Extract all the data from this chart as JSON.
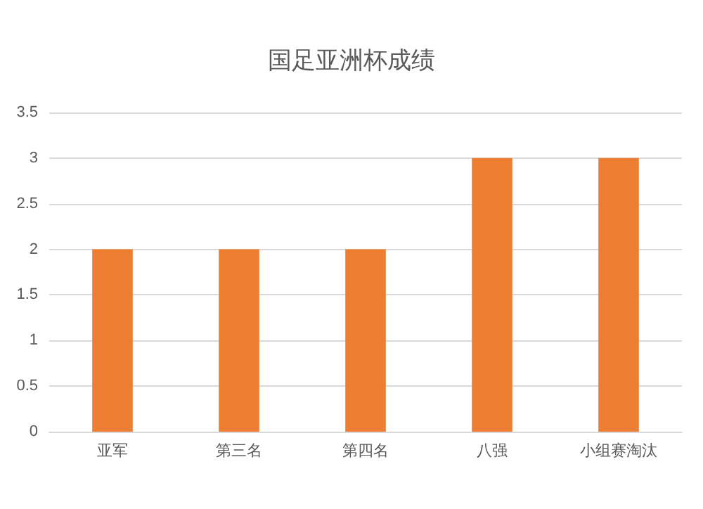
{
  "chart_data": {
    "type": "bar",
    "title": "国足亚洲杯成绩",
    "categories": [
      "亚军",
      "第三名",
      "第四名",
      "八强",
      "小组赛淘汰"
    ],
    "values": [
      2,
      2,
      2,
      3,
      3
    ],
    "color": "#ed7d31",
    "ylim": [
      0,
      3.5
    ],
    "yticks": [
      0,
      0.5,
      1,
      1.5,
      2,
      2.5,
      3,
      3.5
    ],
    "grid": "y"
  }
}
